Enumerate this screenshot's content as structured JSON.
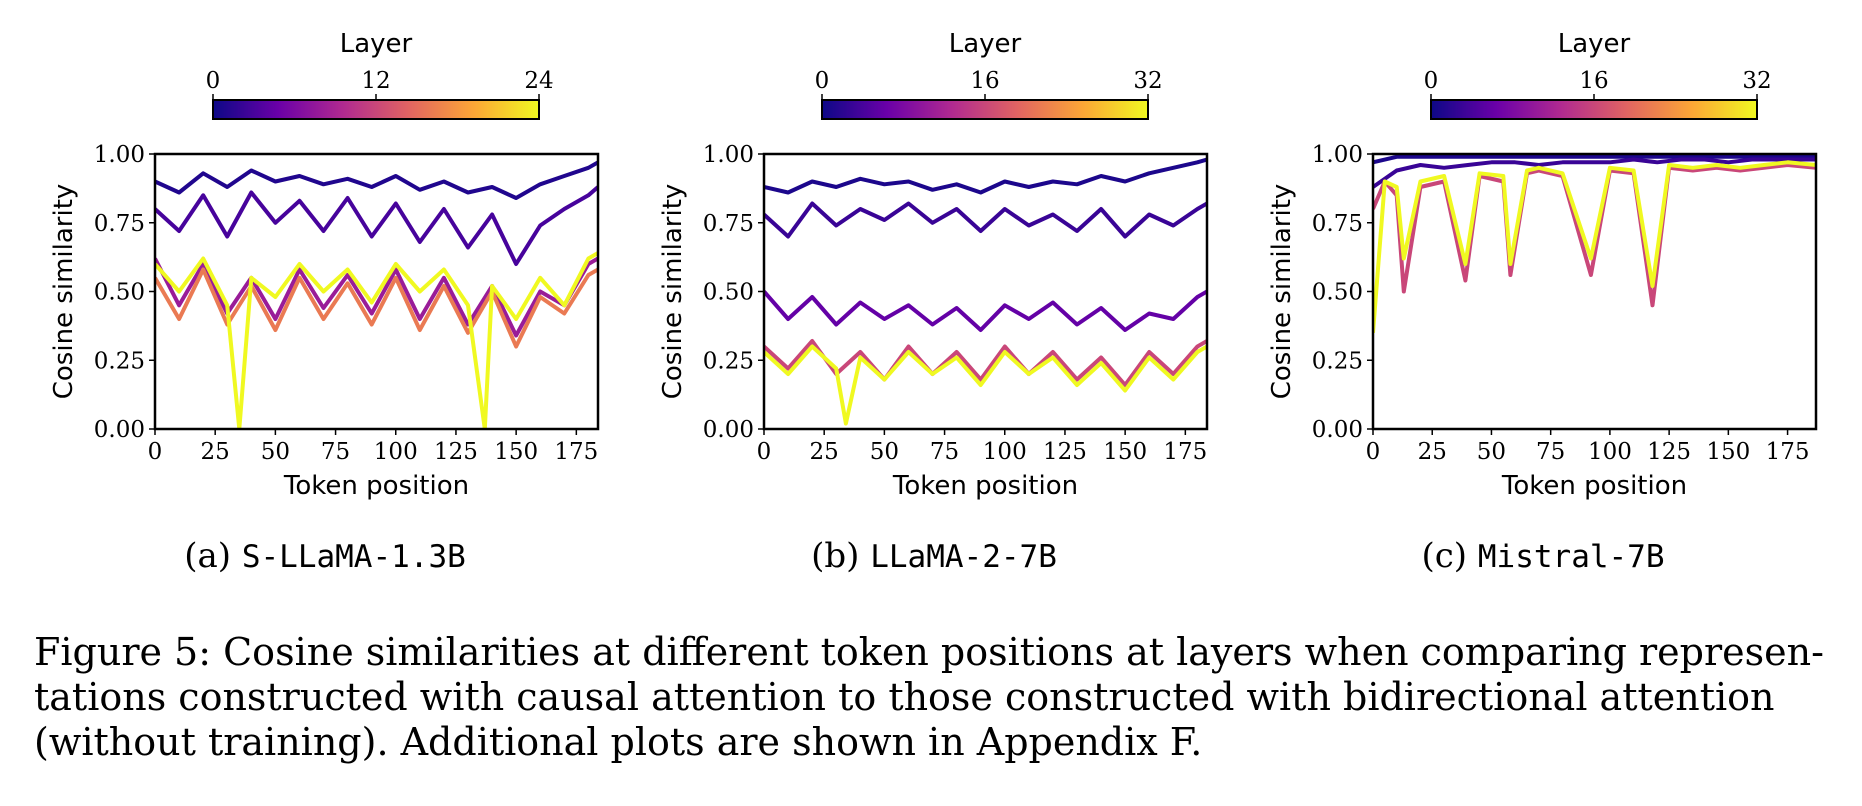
{
  "figure": {
    "caption_lines": [
      "Figure 5: Cosine similarities at different token positions at layers when comparing represen-",
      "tations constructed with causal attention to those constructed with bidirectional attention",
      "(without training). Additional plots are shown in Appendix F."
    ],
    "colormap": "plasma",
    "colors": [
      "#0d0887",
      "#6a00a8",
      "#b12a90",
      "#e16462",
      "#fca636",
      "#f0f921"
    ]
  },
  "panels": [
    {
      "label": "(a)",
      "model": "S-LLaMA-1.3B",
      "colorbar": {
        "title": "Layer",
        "min": 0,
        "max": 24,
        "ticks": [
          "0",
          "12",
          "24"
        ]
      },
      "xticks": [
        "0",
        "25",
        "50",
        "75",
        "100",
        "125",
        "150",
        "175"
      ],
      "yticks": [
        "0.00",
        "0.25",
        "0.50",
        "0.75",
        "1.00"
      ]
    },
    {
      "label": "(b)",
      "model": "LLaMA-2-7B",
      "colorbar": {
        "title": "Layer",
        "min": 0,
        "max": 32,
        "ticks": [
          "0",
          "16",
          "32"
        ]
      },
      "xticks": [
        "0",
        "25",
        "50",
        "75",
        "100",
        "125",
        "150",
        "175"
      ],
      "yticks": [
        "0.00",
        "0.25",
        "0.50",
        "0.75",
        "1.00"
      ]
    },
    {
      "label": "(c)",
      "model": "Mistral-7B",
      "colorbar": {
        "title": "Layer",
        "min": 0,
        "max": 32,
        "ticks": [
          "0",
          "16",
          "32"
        ]
      },
      "xticks": [
        "0",
        "25",
        "50",
        "75",
        "100",
        "125",
        "150",
        "175"
      ],
      "yticks": [
        "0.00",
        "0.25",
        "0.50",
        "0.75",
        "1.00"
      ]
    }
  ],
  "chart_data": [
    {
      "type": "line",
      "title": "",
      "xlabel": "Token position",
      "ylabel": "Cosine similarity",
      "xlim": [
        0,
        184
      ],
      "ylim": [
        0,
        1
      ],
      "grid": false,
      "legend": "colorbar top",
      "colorbar_label": "Layer",
      "layers": [
        0,
        24
      ],
      "series": [
        {
          "layer": 1,
          "x": [
            0,
            10,
            20,
            30,
            40,
            50,
            60,
            70,
            80,
            90,
            100,
            110,
            120,
            130,
            140,
            150,
            160,
            170,
            180,
            184
          ],
          "values": [
            0.9,
            0.86,
            0.93,
            0.88,
            0.94,
            0.9,
            0.92,
            0.89,
            0.91,
            0.88,
            0.92,
            0.87,
            0.9,
            0.86,
            0.88,
            0.84,
            0.89,
            0.92,
            0.95,
            0.97
          ]
        },
        {
          "layer": 3,
          "x": [
            0,
            10,
            20,
            30,
            40,
            50,
            60,
            70,
            80,
            90,
            100,
            110,
            120,
            130,
            140,
            150,
            160,
            170,
            180,
            184
          ],
          "values": [
            0.8,
            0.72,
            0.85,
            0.7,
            0.86,
            0.75,
            0.83,
            0.72,
            0.84,
            0.7,
            0.82,
            0.68,
            0.8,
            0.66,
            0.78,
            0.6,
            0.74,
            0.8,
            0.85,
            0.88
          ]
        },
        {
          "layer": 8,
          "x": [
            0,
            10,
            20,
            30,
            40,
            50,
            60,
            70,
            80,
            90,
            100,
            110,
            120,
            130,
            140,
            150,
            160,
            170,
            180,
            184
          ],
          "values": [
            0.62,
            0.45,
            0.6,
            0.42,
            0.55,
            0.4,
            0.58,
            0.44,
            0.56,
            0.42,
            0.58,
            0.4,
            0.55,
            0.38,
            0.52,
            0.34,
            0.5,
            0.45,
            0.6,
            0.62
          ]
        },
        {
          "layer": 16,
          "x": [
            0,
            10,
            20,
            30,
            40,
            50,
            60,
            70,
            80,
            90,
            100,
            110,
            120,
            130,
            140,
            150,
            160,
            170,
            180,
            184
          ],
          "values": [
            0.55,
            0.4,
            0.58,
            0.38,
            0.52,
            0.36,
            0.55,
            0.4,
            0.53,
            0.38,
            0.55,
            0.36,
            0.52,
            0.35,
            0.5,
            0.3,
            0.48,
            0.42,
            0.56,
            0.58
          ]
        },
        {
          "layer": 24,
          "x": [
            0,
            10,
            20,
            30,
            35,
            40,
            50,
            60,
            70,
            80,
            90,
            100,
            110,
            120,
            130,
            137,
            140,
            150,
            160,
            170,
            180,
            184
          ],
          "values": [
            0.6,
            0.5,
            0.62,
            0.45,
            0.0,
            0.55,
            0.48,
            0.6,
            0.5,
            0.58,
            0.46,
            0.6,
            0.5,
            0.58,
            0.45,
            0.0,
            0.52,
            0.4,
            0.55,
            0.45,
            0.62,
            0.64
          ]
        }
      ]
    },
    {
      "type": "line",
      "title": "",
      "xlabel": "Token position",
      "ylabel": "Cosine similarity",
      "xlim": [
        0,
        184
      ],
      "ylim": [
        0,
        1
      ],
      "grid": false,
      "legend": "colorbar top",
      "colorbar_label": "Layer",
      "layers": [
        0,
        32
      ],
      "series": [
        {
          "layer": 1,
          "x": [
            0,
            10,
            20,
            30,
            40,
            50,
            60,
            70,
            80,
            90,
            100,
            110,
            120,
            130,
            140,
            150,
            160,
            170,
            180,
            184
          ],
          "values": [
            0.88,
            0.86,
            0.9,
            0.88,
            0.91,
            0.89,
            0.9,
            0.87,
            0.89,
            0.86,
            0.9,
            0.88,
            0.9,
            0.89,
            0.92,
            0.9,
            0.93,
            0.95,
            0.97,
            0.98
          ]
        },
        {
          "layer": 3,
          "x": [
            0,
            10,
            20,
            30,
            40,
            50,
            60,
            70,
            80,
            90,
            100,
            110,
            120,
            130,
            140,
            150,
            160,
            170,
            180,
            184
          ],
          "values": [
            0.78,
            0.7,
            0.82,
            0.74,
            0.8,
            0.76,
            0.82,
            0.75,
            0.8,
            0.72,
            0.8,
            0.74,
            0.78,
            0.72,
            0.8,
            0.7,
            0.78,
            0.74,
            0.8,
            0.82
          ]
        },
        {
          "layer": 6,
          "x": [
            0,
            10,
            20,
            30,
            40,
            50,
            60,
            70,
            80,
            90,
            100,
            110,
            120,
            130,
            140,
            150,
            160,
            170,
            180,
            184
          ],
          "values": [
            0.5,
            0.4,
            0.48,
            0.38,
            0.46,
            0.4,
            0.45,
            0.38,
            0.44,
            0.36,
            0.45,
            0.4,
            0.46,
            0.38,
            0.44,
            0.36,
            0.42,
            0.4,
            0.48,
            0.5
          ]
        },
        {
          "layer": 16,
          "x": [
            0,
            10,
            20,
            30,
            40,
            50,
            60,
            70,
            80,
            90,
            100,
            110,
            120,
            130,
            140,
            150,
            160,
            170,
            180,
            184
          ],
          "values": [
            0.3,
            0.22,
            0.32,
            0.2,
            0.28,
            0.18,
            0.3,
            0.2,
            0.28,
            0.18,
            0.3,
            0.2,
            0.28,
            0.18,
            0.26,
            0.16,
            0.28,
            0.2,
            0.3,
            0.32
          ]
        },
        {
          "layer": 32,
          "x": [
            0,
            10,
            20,
            30,
            34,
            40,
            50,
            60,
            70,
            80,
            90,
            100,
            110,
            120,
            130,
            140,
            150,
            160,
            170,
            180,
            184
          ],
          "values": [
            0.28,
            0.2,
            0.3,
            0.22,
            0.02,
            0.26,
            0.18,
            0.28,
            0.2,
            0.26,
            0.16,
            0.28,
            0.2,
            0.26,
            0.16,
            0.24,
            0.14,
            0.26,
            0.18,
            0.28,
            0.3
          ]
        }
      ]
    },
    {
      "type": "line",
      "title": "",
      "xlabel": "Token position",
      "ylabel": "Cosine similarity",
      "xlim": [
        0,
        187
      ],
      "ylim": [
        0,
        1
      ],
      "grid": false,
      "legend": "colorbar top",
      "colorbar_label": "Layer",
      "layers": [
        0,
        32
      ],
      "series": [
        {
          "layer": 1,
          "x": [
            0,
            10,
            20,
            30,
            40,
            50,
            60,
            70,
            80,
            90,
            100,
            110,
            120,
            130,
            140,
            150,
            160,
            170,
            180,
            187
          ],
          "values": [
            0.97,
            0.99,
            0.99,
            0.99,
            0.99,
            0.99,
            0.99,
            0.99,
            0.99,
            0.99,
            0.99,
            0.99,
            0.99,
            0.99,
            0.99,
            0.99,
            0.99,
            0.99,
            0.99,
            0.99
          ]
        },
        {
          "layer": 3,
          "x": [
            0,
            10,
            20,
            30,
            40,
            50,
            60,
            70,
            80,
            90,
            100,
            110,
            120,
            130,
            140,
            150,
            160,
            170,
            180,
            187
          ],
          "values": [
            0.88,
            0.94,
            0.96,
            0.95,
            0.96,
            0.97,
            0.97,
            0.96,
            0.97,
            0.97,
            0.97,
            0.98,
            0.97,
            0.98,
            0.98,
            0.97,
            0.98,
            0.98,
            0.98,
            0.98
          ]
        },
        {
          "layer": 16,
          "x": [
            0,
            5,
            10,
            13,
            20,
            30,
            39,
            45,
            55,
            58,
            65,
            70,
            80,
            92,
            100,
            110,
            118,
            125,
            135,
            145,
            155,
            165,
            175,
            187
          ],
          "values": [
            0.8,
            0.9,
            0.85,
            0.5,
            0.88,
            0.9,
            0.54,
            0.92,
            0.9,
            0.56,
            0.93,
            0.94,
            0.92,
            0.56,
            0.94,
            0.93,
            0.45,
            0.95,
            0.94,
            0.95,
            0.94,
            0.95,
            0.96,
            0.95
          ]
        },
        {
          "layer": 32,
          "x": [
            0,
            5,
            10,
            13,
            20,
            30,
            39,
            45,
            55,
            58,
            65,
            70,
            80,
            92,
            100,
            110,
            118,
            125,
            135,
            145,
            155,
            165,
            175,
            187
          ],
          "values": [
            0.35,
            0.9,
            0.88,
            0.62,
            0.9,
            0.92,
            0.6,
            0.93,
            0.92,
            0.6,
            0.94,
            0.95,
            0.93,
            0.62,
            0.95,
            0.94,
            0.52,
            0.96,
            0.95,
            0.96,
            0.95,
            0.96,
            0.97,
            0.96
          ]
        }
      ]
    }
  ]
}
